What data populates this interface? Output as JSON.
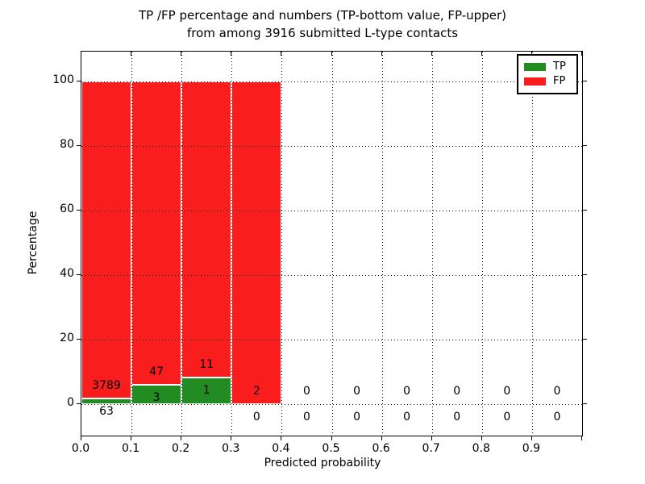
{
  "title": {
    "line1": "TP /FP percentage and numbers (TP-bottom value, FP-upper)",
    "line2": "from among 3916 submitted L-type contacts"
  },
  "axes": {
    "xlabel": "Predicted probability",
    "ylabel": "Percentage",
    "xtick_labels": [
      "0.0",
      "0.1",
      "0.2",
      "0.3",
      "0.4",
      "0.5",
      "0.6",
      "0.7",
      "0.8",
      "0.9"
    ],
    "ytick_labels": [
      "0",
      "20",
      "40",
      "60",
      "80",
      "100"
    ],
    "ytick_values": [
      0,
      20,
      40,
      60,
      80,
      100
    ]
  },
  "legend": {
    "items": [
      {
        "label": "TP",
        "color": "#228B22"
      },
      {
        "label": "FP",
        "color": "#F91D1D"
      }
    ],
    "position": "upper right"
  },
  "colors": {
    "tp": "#228B22",
    "fp": "#F91D1D",
    "bar_edge": "#ffffff",
    "grid": "#000000",
    "text": "#000000",
    "background": "#ffffff"
  },
  "chart_data": {
    "type": "bar",
    "stacked": true,
    "title": "TP /FP percentage and numbers (TP-bottom value, FP-upper) from among 3916 submitted L-type contacts",
    "total_contacts": 3916,
    "xlabel": "Predicted probability",
    "ylabel": "Percentage",
    "xlim": [
      0.0,
      1.0
    ],
    "ylim": [
      -10,
      110
    ],
    "bin_width": 0.1,
    "bin_starts": [
      0.0,
      0.1,
      0.2,
      0.3,
      0.4,
      0.5,
      0.6,
      0.7,
      0.8,
      0.9
    ],
    "series": [
      {
        "name": "TP",
        "color": "#228B22",
        "counts": [
          63,
          3,
          1,
          0,
          0,
          0,
          0,
          0,
          0,
          0
        ],
        "percentages": [
          1.64,
          6.0,
          8.33,
          0,
          0,
          0,
          0,
          0,
          0,
          0
        ]
      },
      {
        "name": "FP",
        "color": "#F91D1D",
        "counts": [
          3789,
          47,
          11,
          2,
          0,
          0,
          0,
          0,
          0,
          0
        ],
        "percentages": [
          98.36,
          94.0,
          91.67,
          100,
          0,
          0,
          0,
          0,
          0,
          0
        ]
      }
    ],
    "bar_total_height_pct": [
      100,
      100,
      100,
      100,
      0,
      0,
      0,
      0,
      0,
      0
    ],
    "grid": "dotted black on every tick, drawn above bars",
    "legend_position": "upper right",
    "annotation_rule": "FP count placed 4% above TP segment top, TP count placed 4% below TP segment top, centered on each bin"
  }
}
